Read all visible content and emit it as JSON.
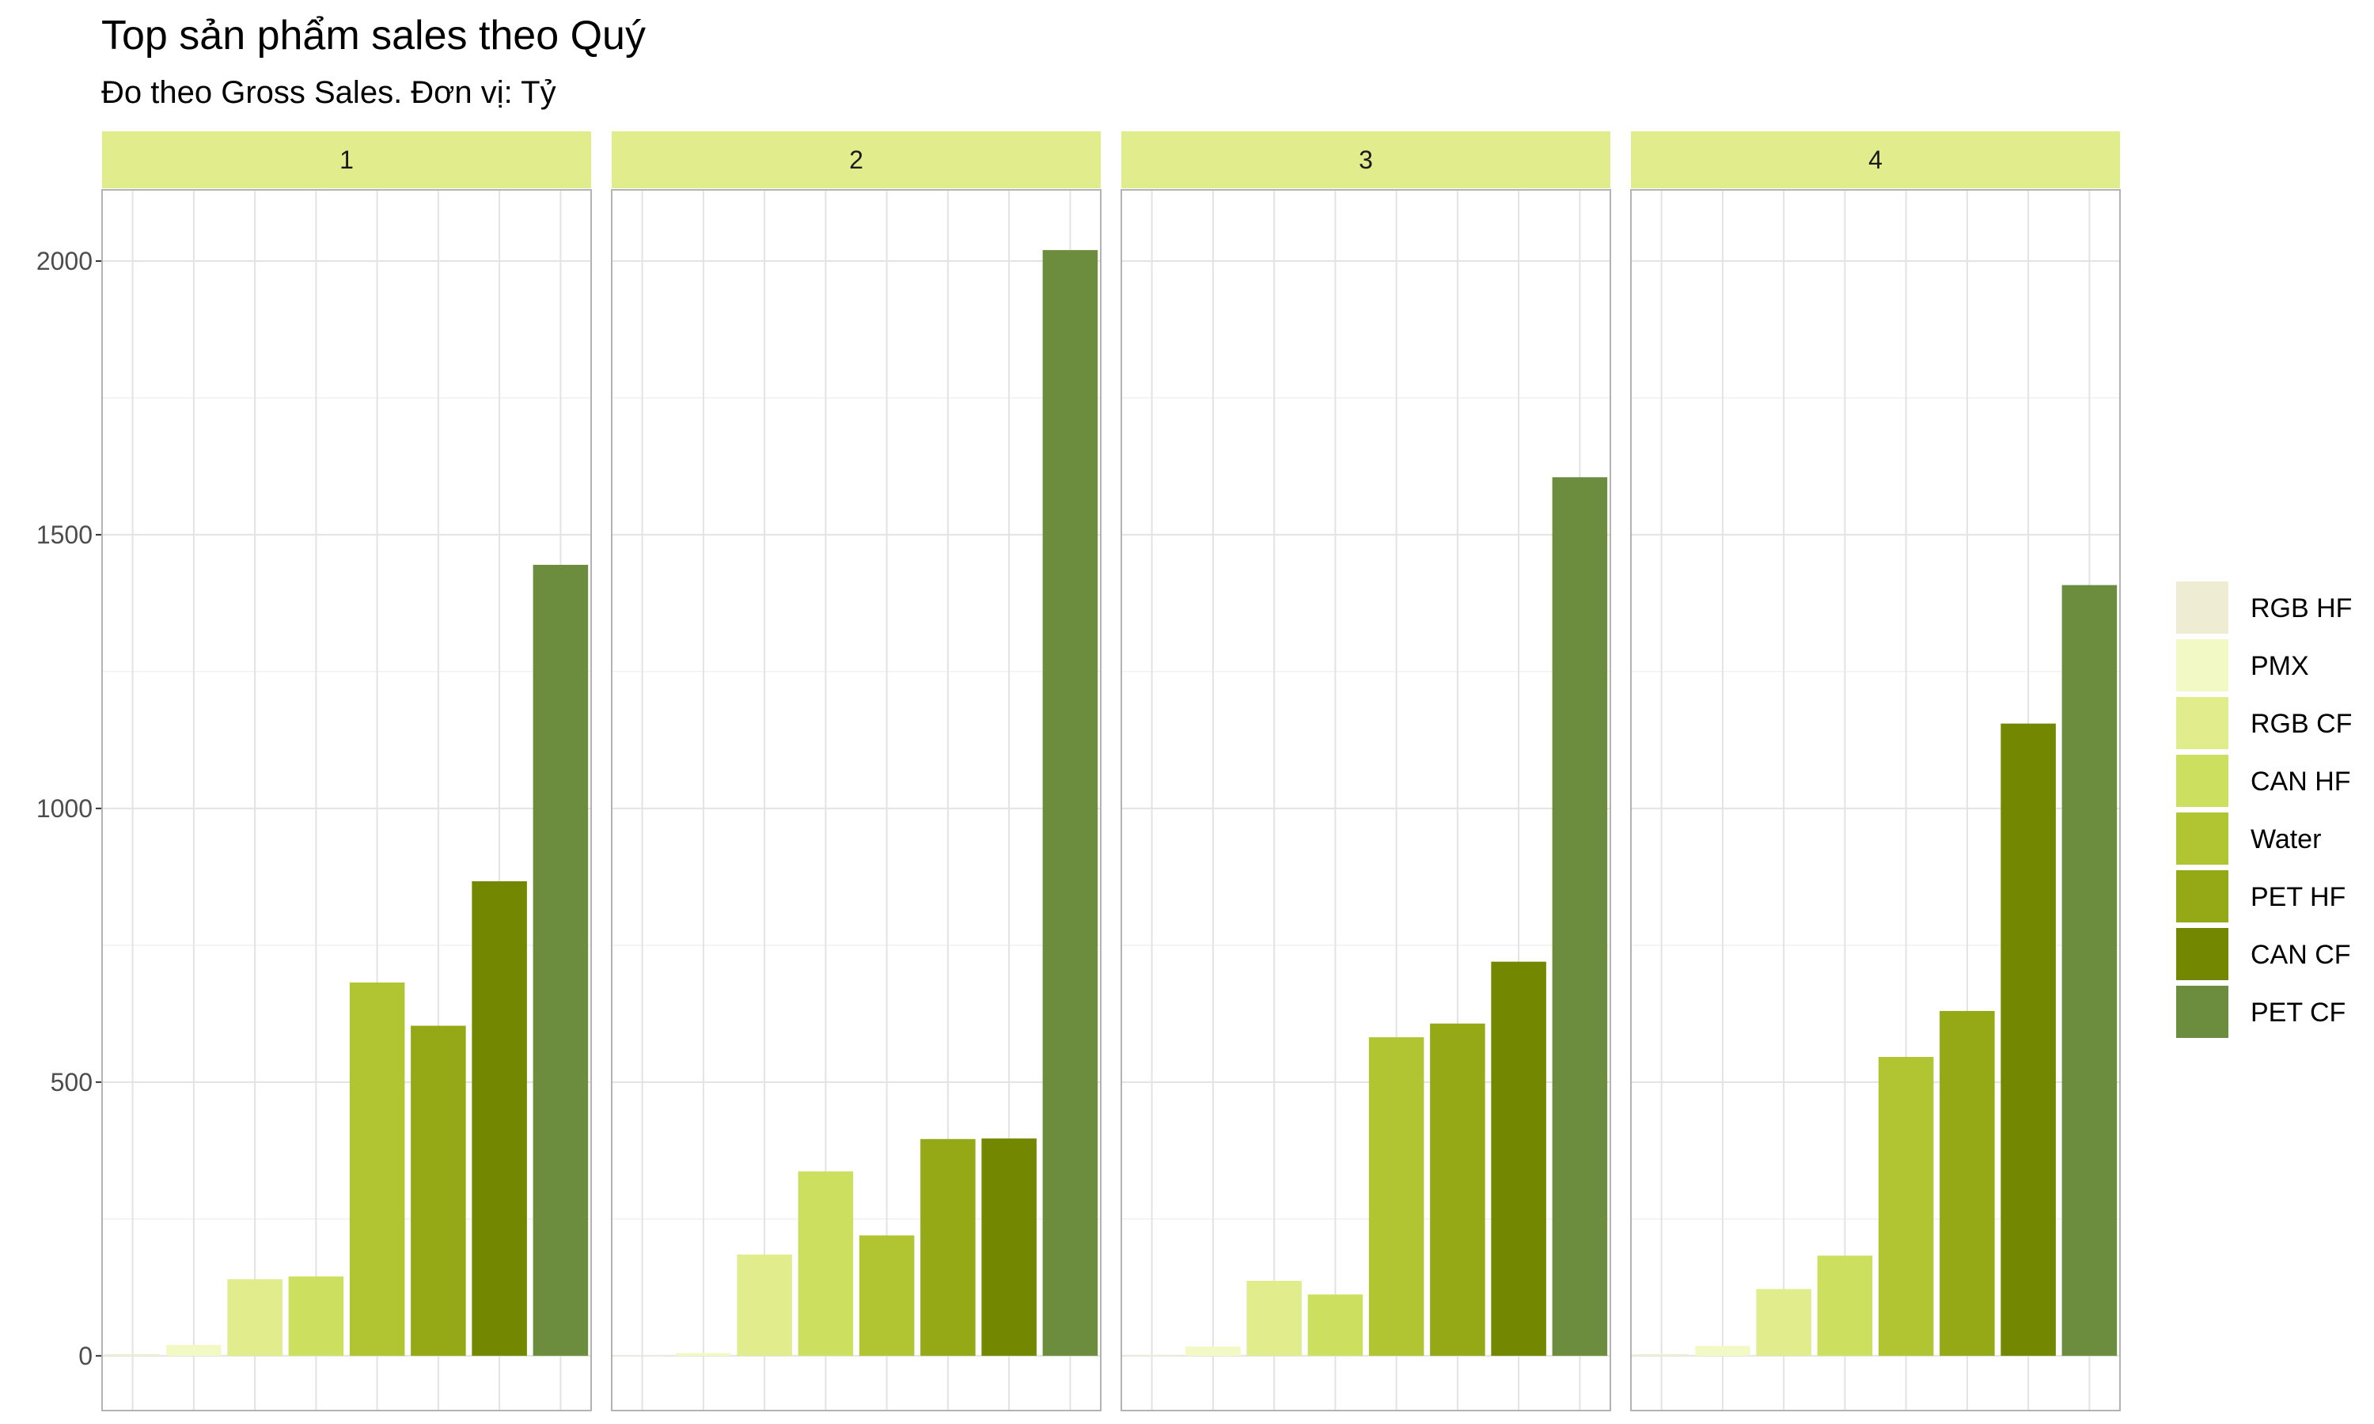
{
  "title": "Top sản phẩm sales theo Quý",
  "subtitle": "Đo theo Gross Sales. Đơn vị: Tỷ",
  "chart_data": {
    "type": "bar",
    "title": "Top sản phẩm sales theo Quý",
    "subtitle": "Đo theo Gross Sales. Đơn vị: Tỷ",
    "xlabel": "",
    "ylabel": "",
    "ylim": [
      -100,
      2130
    ],
    "y_ticks": [
      0,
      500,
      1000,
      1500,
      2000
    ],
    "grid": true,
    "legend_position": "right",
    "categories": [
      "RGB HF",
      "PMX",
      "RGB CF",
      "CAN HF",
      "Water",
      "PET HF",
      "CAN CF",
      "PET CF"
    ],
    "colors": [
      "#EEEDD4",
      "#F3F9C5",
      "#E1EC8C",
      "#CDDF5E",
      "#B1C533",
      "#95A816",
      "#738700",
      "#6C8C3E"
    ],
    "facets": [
      {
        "label": "1",
        "values": [
          3,
          20,
          140,
          145,
          682,
          603,
          867,
          1445
        ]
      },
      {
        "label": "2",
        "values": [
          1,
          5,
          185,
          337,
          220,
          396,
          397,
          2020
        ]
      },
      {
        "label": "3",
        "values": [
          2,
          17,
          137,
          112,
          582,
          607,
          720,
          1605
        ]
      },
      {
        "label": "4",
        "values": [
          3,
          18,
          122,
          183,
          546,
          630,
          1155,
          1408
        ]
      }
    ]
  }
}
